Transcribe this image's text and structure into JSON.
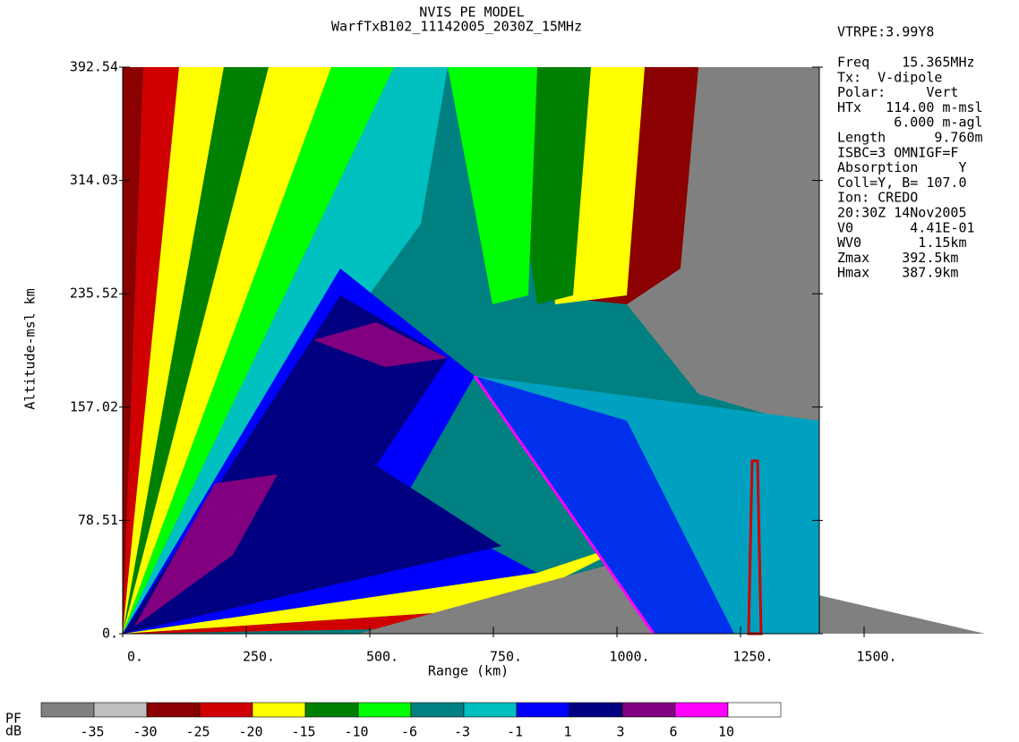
{
  "chart_data": {
    "type": "heatmap",
    "title": "NVIS PE MODEL",
    "subtitle": "WarfTxB102_11142005_2030Z_15MHz",
    "version": "VTRPE:3.99Y8",
    "xlabel": "Range (km)",
    "ylabel": "Altitude-msl km",
    "xlim": [
      0,
      1500
    ],
    "ylim": [
      0,
      392.54
    ],
    "xticks": [
      {
        "value": 0,
        "label": "0."
      },
      {
        "value": 250,
        "label": "250."
      },
      {
        "value": 500,
        "label": "500."
      },
      {
        "value": 750,
        "label": "750."
      },
      {
        "value": 1000,
        "label": "1000."
      },
      {
        "value": 1250,
        "label": "1250."
      },
      {
        "value": 1500,
        "label": "1500."
      }
    ],
    "yticks": [
      {
        "value": 0,
        "label": "0."
      },
      78.51,
      157.02,
      235.52,
      314.03,
      392.54
    ],
    "info": [
      "Freq    15.365MHz",
      "Tx:  V-dipole",
      "Polar:     Vert",
      "HTx   114.00 m-msl",
      "       6.000 m-agl",
      "Length      9.760m",
      "ISBC=3 OMNIGF=F",
      "Absorption     Y",
      "Coll=Y, B= 107.0",
      "Ion: CREDO",
      "20:30Z 14Nov2005",
      "V0       4.41E-01",
      "WV0       1.15km",
      "Zmax    392.5km",
      "Hmax    387.9km"
    ],
    "colorbar": {
      "label": [
        "PF",
        "dB"
      ],
      "levels": [
        -35,
        -30,
        -25,
        -20,
        -15,
        -10,
        -6,
        -3,
        -1,
        1,
        3,
        6,
        10
      ],
      "colors": [
        "#808080",
        "#c0c0c0",
        "#8b0000",
        "#d00000",
        "#ffff00",
        "#008000",
        "#00ff00",
        "#008080",
        "#00c0c0",
        "#0000ff",
        "#000080",
        "#800080",
        "#ff00ff",
        "#ffffff"
      ]
    }
  }
}
